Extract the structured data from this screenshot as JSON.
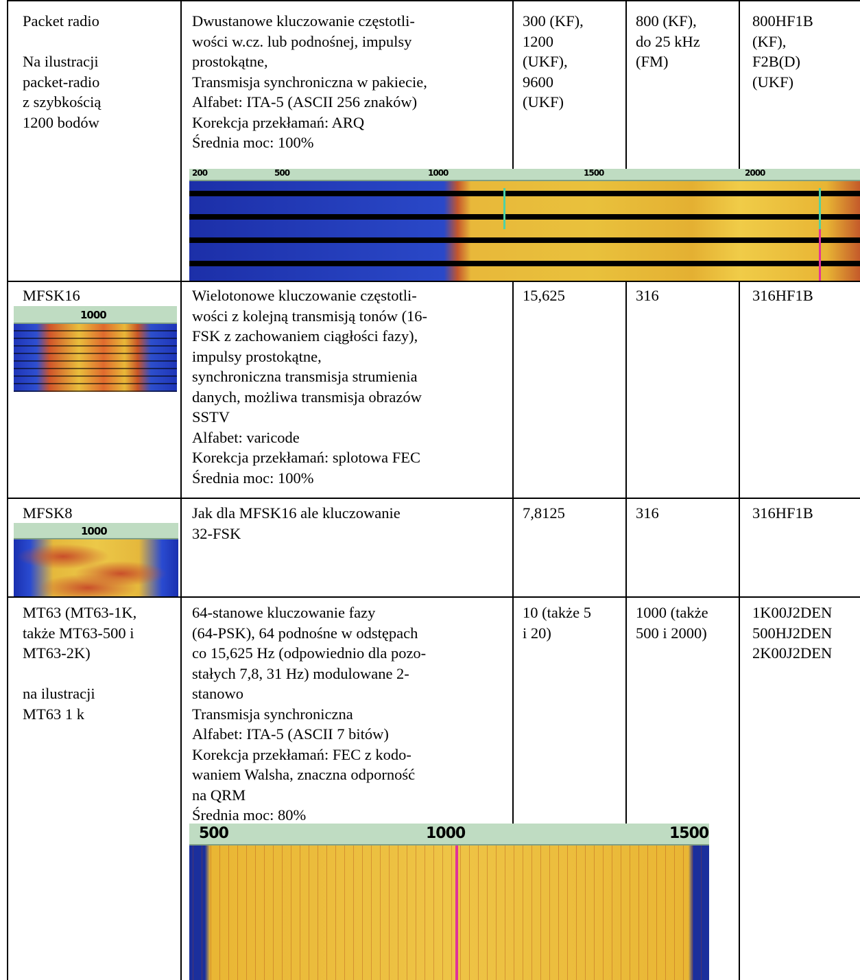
{
  "rows": [
    {
      "mode": "Packet radio\n\nNa ilustracji\npacket-radio\nz szybkością\n1200 bodów",
      "description": "Dwustanowe kluczowanie częstotli-\nwości w.cz. lub podnośnej, impulsy\nprostokątne,\nTransmisja synchroniczna w pakiecie,\nAlfabet: ITA-5 (ASCII 256 znaków)\nKorekcja przekłamań: ARQ\nŚrednia moc: 100%",
      "baud": "300 (KF),\n1200\n(UKF),\n9600\n(UKF)",
      "bandwidth": "800 (KF),\ndo 25 kHz\n(FM)",
      "designation": "800HF1B\n(KF),\nF2B(D)\n(UKF)",
      "spectrogram_ticks": [
        "200",
        "500",
        "1000",
        "1500",
        "2000"
      ]
    },
    {
      "mode": "MFSK16",
      "description": "Wielotonowe kluczowanie częstotli-\nwości z kolejną transmisją tonów (16-\nFSK z zachowaniem ciągłości fazy),\nimpulsy prostokątne,\nsynchroniczna transmisja strumienia\ndanych, możliwa transmisja obrazów\nSSTV\nAlfabet: varicode\nKorekcja przekłamań: splotowa FEC\nŚrednia moc: 100%",
      "baud": "15,625",
      "bandwidth": "316",
      "designation": "316HF1B",
      "spectrogram_ticks": [
        "1000"
      ]
    },
    {
      "mode": "MFSK8",
      "description": "Jak dla MFSK16 ale kluczowanie\n32-FSK",
      "baud": "7,8125",
      "bandwidth": "316",
      "designation": "316HF1B",
      "spectrogram_ticks": [
        "1000"
      ]
    },
    {
      "mode": "MT63 (MT63-1K,\ntakże MT63-500 i\nMT63-2K)\n\nna ilustracji\nMT63 1 k",
      "description": "64-stanowe kluczowanie fazy\n(64-PSK), 64 podnośne w odstępach\nco 15,625 Hz (odpowiednio dla pozo-\nstałych 7,8, 31 Hz) modulowane 2-\nstanowo\nTransmisja synchroniczna\nAlfabet: ITA-5 (ASCII 7 bitów)\nKorekcja przekłamań: FEC z kodo-\nwaniem Walsha, znaczna odporność\nna QRM\nŚrednia moc: 80%",
      "baud": "10 (także 5\ni 20)",
      "bandwidth": "1000 (także\n500 i 2000)",
      "designation": "1K00J2DEN\n500HJ2DEN\n2K00J2DEN",
      "spectrogram_ticks": [
        "500",
        "1000",
        "1500"
      ]
    }
  ]
}
